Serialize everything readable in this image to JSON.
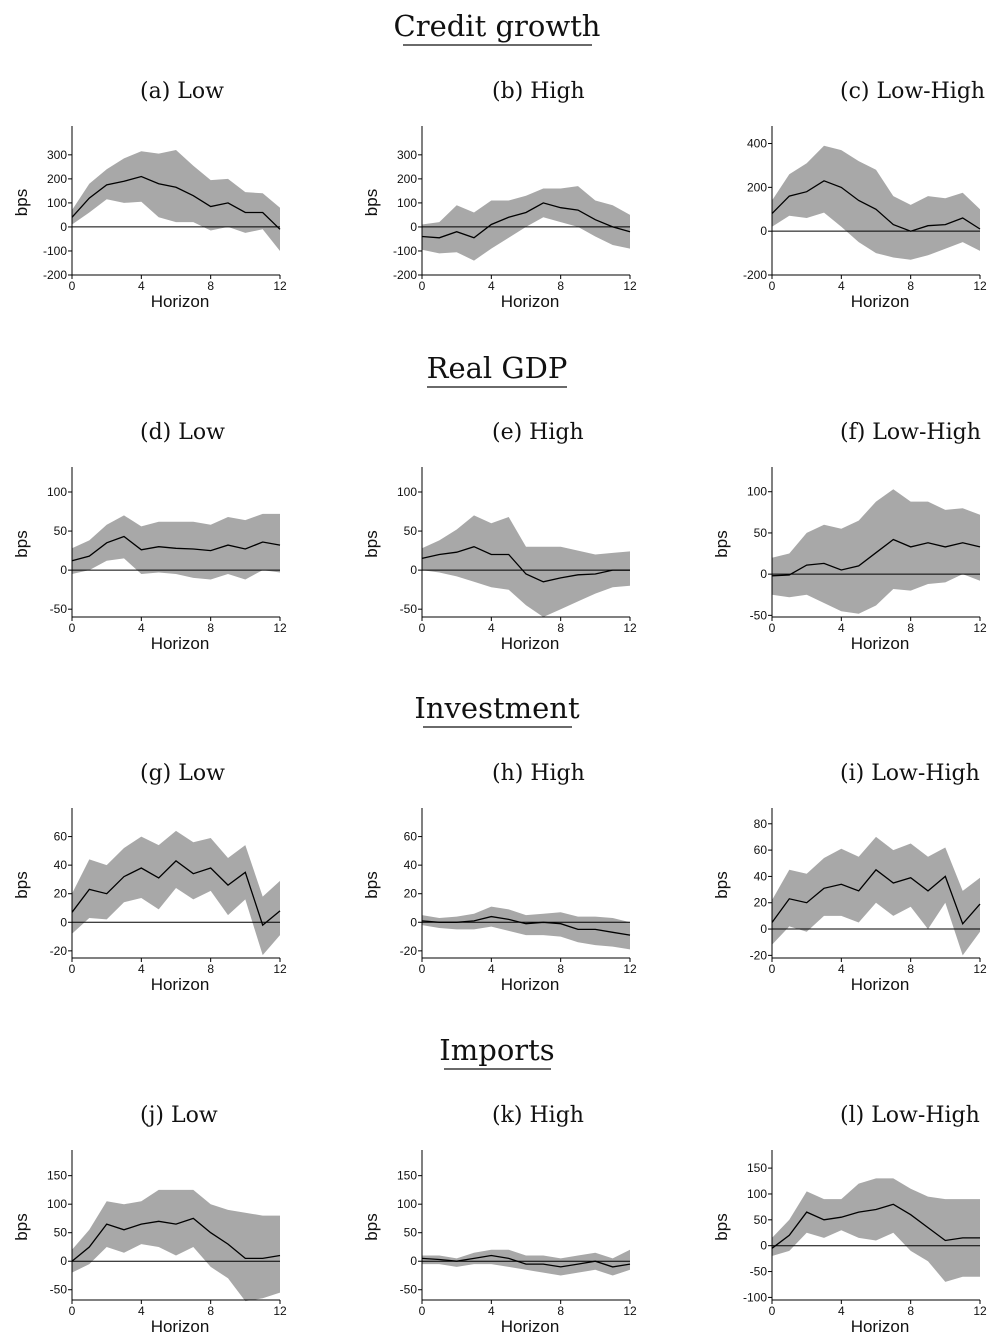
{
  "sections": [
    {
      "title": "Credit growth"
    },
    {
      "title": "Real GDP"
    },
    {
      "title": "Investment"
    },
    {
      "title": "Imports"
    }
  ],
  "chart_data": [
    {
      "type": "area",
      "title": "(a) Low",
      "xlabel": "Horizon",
      "ylabel": "bps",
      "xlim": [
        0,
        12
      ],
      "ylim": [
        -200,
        420
      ],
      "yticks": [
        -200,
        -100,
        0,
        100,
        200,
        300
      ],
      "xticks": [
        0,
        4,
        8,
        12
      ],
      "series": [
        {
          "x": [
            0,
            1,
            2,
            3,
            4,
            5,
            6,
            7,
            8,
            9,
            10,
            11,
            12
          ],
          "values": [
            40,
            120,
            175,
            190,
            210,
            180,
            165,
            130,
            85,
            100,
            60,
            60,
            -10
          ],
          "upper": [
            70,
            180,
            240,
            285,
            315,
            305,
            320,
            255,
            195,
            200,
            145,
            140,
            80
          ],
          "lower": [
            10,
            60,
            115,
            100,
            105,
            40,
            20,
            20,
            -15,
            0,
            -25,
            -10,
            -100
          ]
        }
      ]
    },
    {
      "type": "area",
      "title": "(b) High",
      "xlabel": "Horizon",
      "ylabel": "bps",
      "xlim": [
        0,
        12
      ],
      "ylim": [
        -200,
        420
      ],
      "yticks": [
        -200,
        -100,
        0,
        100,
        200,
        300
      ],
      "xticks": [
        0,
        4,
        8,
        12
      ],
      "series": [
        {
          "x": [
            0,
            1,
            2,
            3,
            4,
            5,
            6,
            7,
            8,
            9,
            10,
            11,
            12
          ],
          "values": [
            -40,
            -45,
            -20,
            -45,
            10,
            40,
            60,
            100,
            80,
            70,
            30,
            0,
            -20
          ],
          "upper": [
            10,
            20,
            90,
            60,
            110,
            110,
            130,
            160,
            160,
            170,
            110,
            90,
            50
          ],
          "lower": [
            -95,
            -110,
            -105,
            -140,
            -90,
            -45,
            0,
            40,
            20,
            0,
            -40,
            -75,
            -90
          ]
        }
      ]
    },
    {
      "type": "area",
      "title": "(c) Low-High",
      "xlabel": "Horizon",
      "ylabel": "",
      "xlim": [
        0,
        12
      ],
      "ylim": [
        -200,
        480
      ],
      "yticks": [
        -200,
        0,
        200,
        400
      ],
      "xticks": [
        0,
        4,
        8,
        12
      ],
      "series": [
        {
          "x": [
            0,
            1,
            2,
            3,
            4,
            5,
            6,
            7,
            8,
            9,
            10,
            11,
            12
          ],
          "values": [
            80,
            160,
            180,
            230,
            200,
            140,
            100,
            30,
            0,
            25,
            30,
            60,
            10
          ],
          "upper": [
            140,
            260,
            310,
            390,
            370,
            320,
            280,
            160,
            120,
            160,
            150,
            175,
            100
          ],
          "lower": [
            20,
            70,
            60,
            85,
            20,
            -50,
            -100,
            -120,
            -130,
            -110,
            -80,
            -50,
            -90
          ]
        }
      ]
    },
    {
      "type": "area",
      "title": "(d) Low",
      "xlabel": "Horizon",
      "ylabel": "bps",
      "xlim": [
        0,
        12
      ],
      "ylim": [
        -60,
        132
      ],
      "yticks": [
        -50,
        0,
        50,
        100
      ],
      "xticks": [
        0,
        4,
        8,
        12
      ],
      "series": [
        {
          "x": [
            0,
            1,
            2,
            3,
            4,
            5,
            6,
            7,
            8,
            9,
            10,
            11,
            12
          ],
          "values": [
            12,
            18,
            35,
            43,
            26,
            30,
            28,
            27,
            25,
            32,
            27,
            36,
            32
          ],
          "upper": [
            28,
            38,
            58,
            70,
            56,
            62,
            62,
            62,
            58,
            68,
            64,
            72,
            72
          ],
          "lower": [
            -5,
            0,
            12,
            15,
            -5,
            -3,
            -5,
            -10,
            -12,
            -5,
            -12,
            0,
            -3
          ]
        }
      ]
    },
    {
      "type": "area",
      "title": "(e) High",
      "xlabel": "Horizon",
      "ylabel": "bps",
      "xlim": [
        0,
        12
      ],
      "ylim": [
        -60,
        132
      ],
      "yticks": [
        -50,
        0,
        50,
        100
      ],
      "xticks": [
        0,
        4,
        8,
        12
      ],
      "series": [
        {
          "x": [
            0,
            1,
            2,
            3,
            4,
            5,
            6,
            7,
            8,
            9,
            10,
            11,
            12
          ],
          "values": [
            15,
            20,
            23,
            30,
            20,
            20,
            -5,
            -15,
            -10,
            -6,
            -5,
            0,
            0
          ],
          "upper": [
            28,
            38,
            52,
            70,
            60,
            68,
            30,
            30,
            30,
            25,
            20,
            22,
            24
          ],
          "lower": [
            0,
            -3,
            -8,
            -15,
            -22,
            -25,
            -45,
            -60,
            -50,
            -40,
            -30,
            -22,
            -20
          ]
        }
      ]
    },
    {
      "type": "area",
      "title": "(f) Low-High",
      "xlabel": "Horizon",
      "ylabel": "bps",
      "xlim": [
        0,
        12
      ],
      "ylim": [
        -52,
        130
      ],
      "yticks": [
        -50,
        0,
        50,
        100
      ],
      "xticks": [
        0,
        4,
        8,
        12
      ],
      "series": [
        {
          "x": [
            0,
            1,
            2,
            3,
            4,
            5,
            6,
            7,
            8,
            9,
            10,
            11,
            12
          ],
          "values": [
            -2,
            -1,
            11,
            13,
            5,
            10,
            26,
            42,
            33,
            38,
            33,
            38,
            33
          ],
          "upper": [
            20,
            25,
            50,
            60,
            55,
            65,
            88,
            103,
            88,
            88,
            78,
            80,
            72
          ],
          "lower": [
            -25,
            -28,
            -25,
            -35,
            -45,
            -48,
            -38,
            -18,
            -20,
            -12,
            -10,
            0,
            -8
          ]
        }
      ]
    },
    {
      "type": "area",
      "title": "(g) Low",
      "xlabel": "Horizon",
      "ylabel": "bps",
      "xlim": [
        0,
        12
      ],
      "ylim": [
        -25,
        80
      ],
      "yticks": [
        -20,
        0,
        20,
        40,
        60
      ],
      "xticks": [
        0,
        4,
        8,
        12
      ],
      "series": [
        {
          "x": [
            0,
            1,
            2,
            3,
            4,
            5,
            6,
            7,
            8,
            9,
            10,
            11,
            12
          ],
          "values": [
            7,
            23,
            20,
            32,
            38,
            31,
            43,
            34,
            38,
            26,
            35,
            -2,
            8
          ],
          "upper": [
            20,
            44,
            40,
            52,
            60,
            54,
            64,
            56,
            59,
            45,
            54,
            18,
            29
          ],
          "lower": [
            -8,
            3,
            2,
            14,
            17,
            9,
            24,
            16,
            22,
            5,
            16,
            -23,
            -9
          ]
        }
      ]
    },
    {
      "type": "area",
      "title": "(h) High",
      "xlabel": "Horizon",
      "ylabel": "bps",
      "xlim": [
        0,
        12
      ],
      "ylim": [
        -25,
        80
      ],
      "yticks": [
        -20,
        0,
        20,
        40,
        60
      ],
      "xticks": [
        0,
        4,
        8,
        12
      ],
      "series": [
        {
          "x": [
            0,
            1,
            2,
            3,
            4,
            5,
            6,
            7,
            8,
            9,
            10,
            11,
            12
          ],
          "values": [
            1,
            0,
            0,
            1,
            4,
            2,
            -1,
            0,
            -1,
            -5,
            -5,
            -7,
            -9
          ],
          "upper": [
            5,
            3,
            4,
            6,
            11,
            9,
            5,
            6,
            7,
            4,
            4,
            3,
            0
          ],
          "lower": [
            -2,
            -4,
            -5,
            -5,
            -3,
            -6,
            -9,
            -9,
            -10,
            -14,
            -16,
            -17,
            -19
          ]
        }
      ]
    },
    {
      "type": "area",
      "title": "(i) Low-High",
      "xlabel": "Horizon",
      "ylabel": "bps",
      "xlim": [
        0,
        12
      ],
      "ylim": [
        -22,
        92
      ],
      "yticks": [
        -20,
        0,
        20,
        40,
        60,
        80
      ],
      "xticks": [
        0,
        4,
        8,
        12
      ],
      "series": [
        {
          "x": [
            0,
            1,
            2,
            3,
            4,
            5,
            6,
            7,
            8,
            9,
            10,
            11,
            12
          ],
          "values": [
            5,
            23,
            20,
            31,
            34,
            29,
            45,
            35,
            39,
            29,
            40,
            4,
            19
          ],
          "upper": [
            22,
            45,
            42,
            54,
            61,
            55,
            70,
            60,
            65,
            55,
            62,
            29,
            39
          ],
          "lower": [
            -12,
            2,
            -2,
            10,
            10,
            5,
            20,
            10,
            17,
            0,
            20,
            -20,
            -2
          ]
        }
      ]
    },
    {
      "type": "area",
      "title": "(j) Low",
      "xlabel": "Horizon",
      "ylabel": "bps",
      "xlim": [
        0,
        12
      ],
      "ylim": [
        -68,
        195
      ],
      "yticks": [
        -50,
        0,
        50,
        100,
        150
      ],
      "xticks": [
        0,
        4,
        8,
        12
      ],
      "series": [
        {
          "x": [
            0,
            1,
            2,
            3,
            4,
            5,
            6,
            7,
            8,
            9,
            10,
            11,
            12
          ],
          "values": [
            0,
            25,
            65,
            55,
            65,
            70,
            65,
            75,
            50,
            30,
            5,
            5,
            10
          ],
          "upper": [
            20,
            55,
            105,
            100,
            105,
            125,
            125,
            125,
            100,
            90,
            85,
            80,
            80
          ],
          "lower": [
            -20,
            -5,
            25,
            15,
            30,
            25,
            10,
            25,
            -10,
            -30,
            -70,
            -65,
            -55
          ]
        }
      ]
    },
    {
      "type": "area",
      "title": "(k) High",
      "xlabel": "Horizon",
      "ylabel": "bps",
      "xlim": [
        0,
        12
      ],
      "ylim": [
        -68,
        195
      ],
      "yticks": [
        -50,
        0,
        50,
        100,
        150
      ],
      "xticks": [
        0,
        4,
        8,
        12
      ],
      "series": [
        {
          "x": [
            0,
            1,
            2,
            3,
            4,
            5,
            6,
            7,
            8,
            9,
            10,
            11,
            12
          ],
          "values": [
            5,
            3,
            0,
            5,
            10,
            5,
            -5,
            -5,
            -10,
            -5,
            0,
            -10,
            -5
          ],
          "upper": [
            10,
            10,
            5,
            15,
            20,
            20,
            10,
            10,
            5,
            10,
            15,
            5,
            20
          ],
          "lower": [
            -5,
            -5,
            -10,
            -5,
            -5,
            -10,
            -15,
            -20,
            -25,
            -20,
            -15,
            -25,
            -15
          ]
        }
      ]
    },
    {
      "type": "area",
      "title": "(l) Low-High",
      "xlabel": "Horizon",
      "ylabel": "bps",
      "xlim": [
        0,
        12
      ],
      "ylim": [
        -105,
        185
      ],
      "yticks": [
        -100,
        -50,
        0,
        50,
        100,
        150
      ],
      "xticks": [
        0,
        4,
        8,
        12
      ],
      "series": [
        {
          "x": [
            0,
            1,
            2,
            3,
            4,
            5,
            6,
            7,
            8,
            9,
            10,
            11,
            12
          ],
          "values": [
            -5,
            20,
            65,
            50,
            55,
            65,
            70,
            80,
            60,
            35,
            10,
            15,
            15
          ],
          "upper": [
            15,
            50,
            105,
            90,
            90,
            120,
            130,
            130,
            110,
            95,
            90,
            90,
            90
          ],
          "lower": [
            -20,
            -10,
            25,
            15,
            30,
            15,
            10,
            25,
            -10,
            -30,
            -70,
            -60,
            -60
          ]
        }
      ]
    }
  ]
}
